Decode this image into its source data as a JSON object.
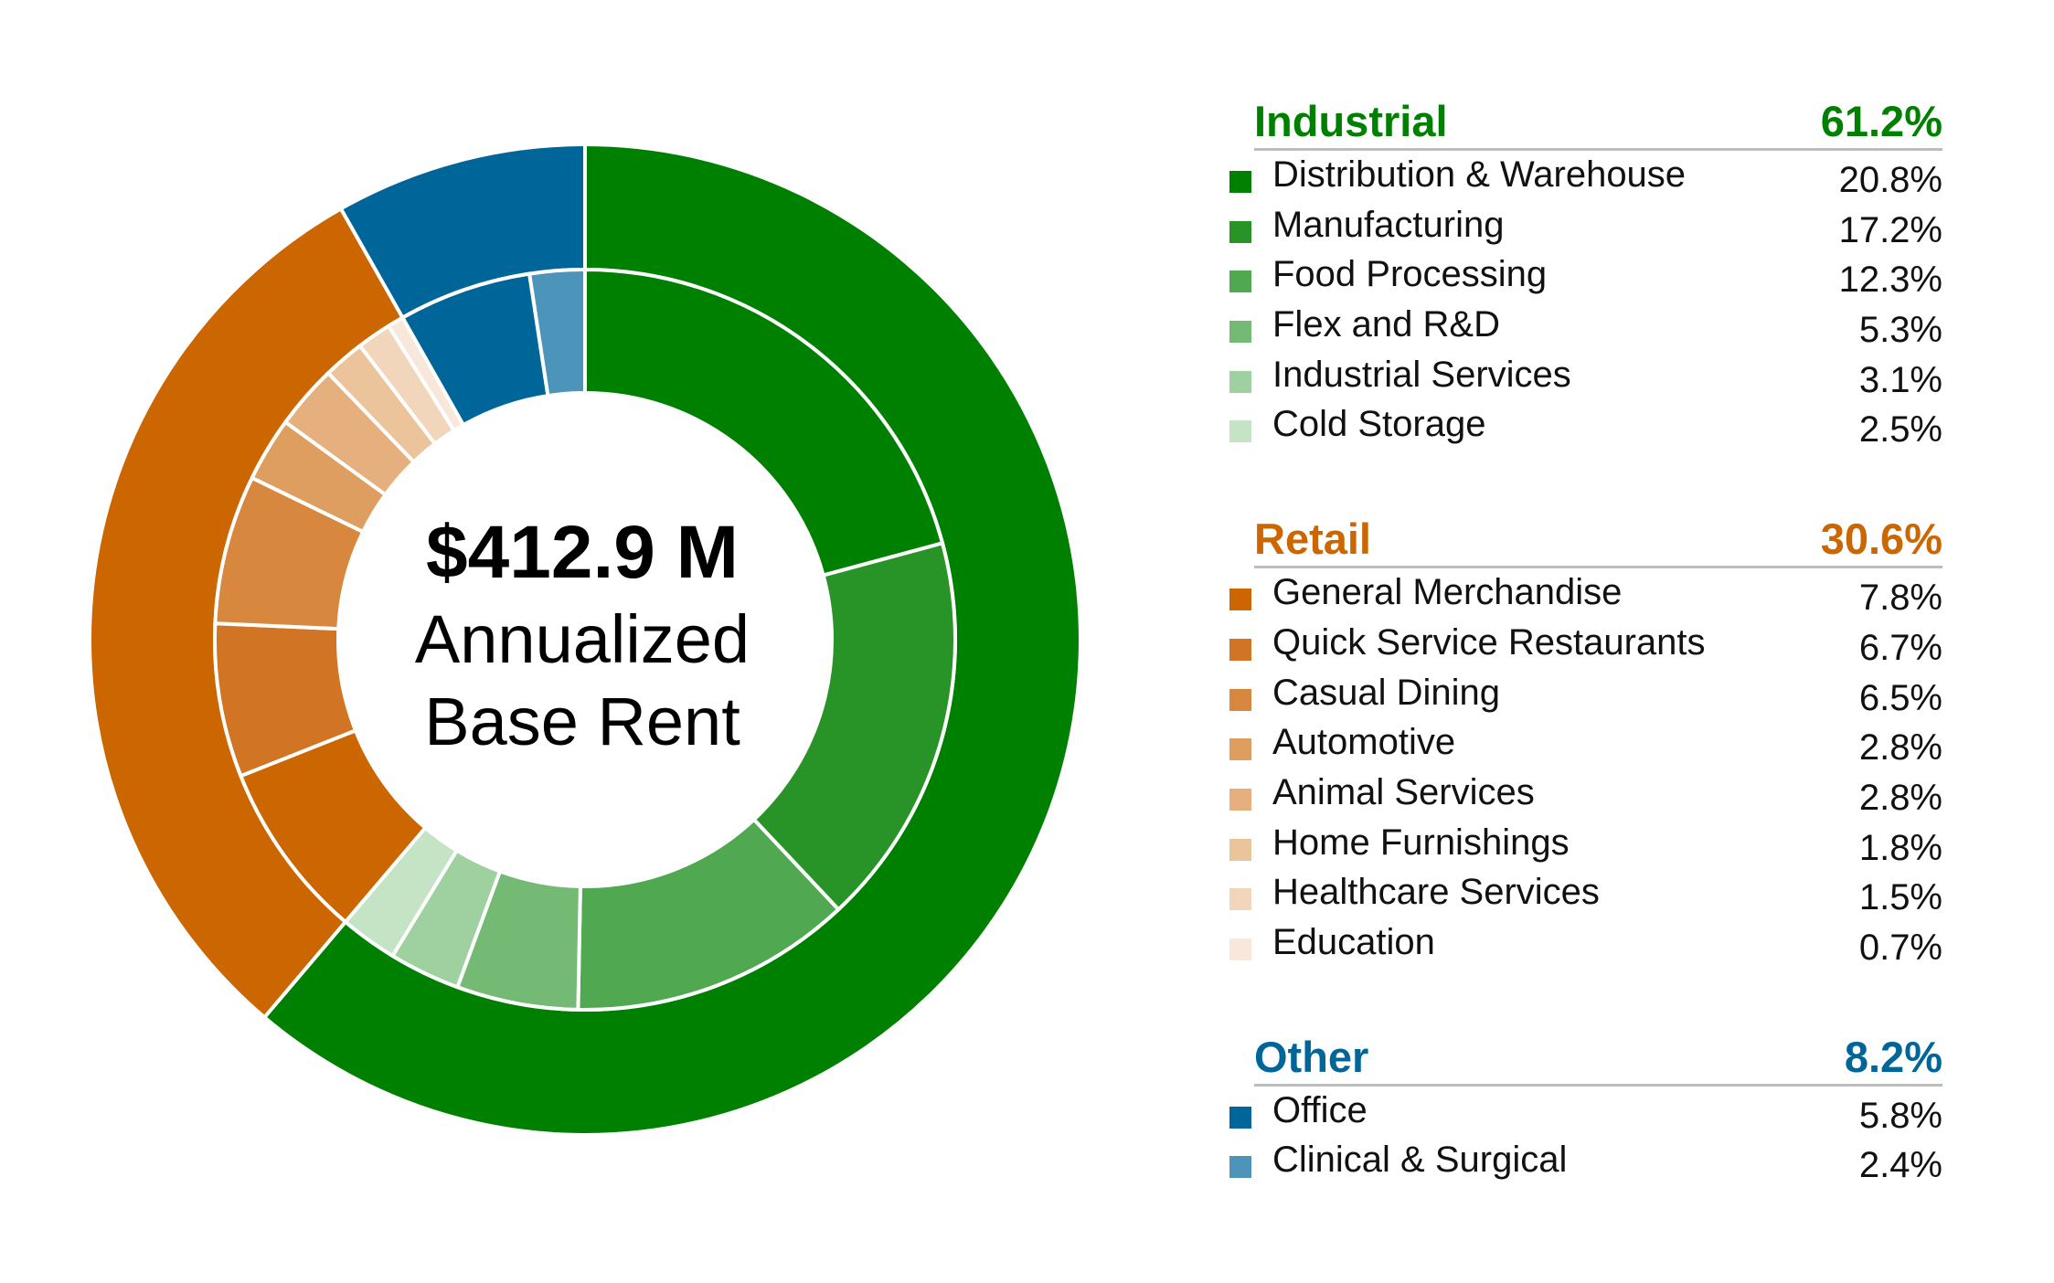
{
  "center": {
    "amount": "$412.9 M",
    "line1": "Annualized",
    "line2": "Base Rent"
  },
  "groups": [
    {
      "name": "Industrial",
      "value": 61.2,
      "label": "61.2%",
      "color": "#008000",
      "items": [
        {
          "name": "Distribution & Warehouse",
          "value": 20.8,
          "label": "20.8%",
          "color": "#008000"
        },
        {
          "name": "Manufacturing",
          "value": 17.2,
          "label": "17.2%",
          "color": "#289428"
        },
        {
          "name": "Food Processing",
          "value": 12.3,
          "label": "12.3%",
          "color": "#50a850"
        },
        {
          "name": "Flex and R&D",
          "value": 5.3,
          "label": "5.3%",
          "color": "#74b974"
        },
        {
          "name": "Industrial Services",
          "value": 3.1,
          "label": "3.1%",
          "color": "#9fd09f"
        },
        {
          "name": "Cold Storage",
          "value": 2.5,
          "label": "2.5%",
          "color": "#c5e3c5"
        }
      ]
    },
    {
      "name": "Retail",
      "value": 30.6,
      "label": "30.6%",
      "color": "#cc6600",
      "items": [
        {
          "name": "General Merchandise",
          "value": 7.8,
          "label": "7.8%",
          "color": "#cc6600"
        },
        {
          "name": "Quick Service Restaurants",
          "value": 6.7,
          "label": "6.7%",
          "color": "#d17424"
        },
        {
          "name": "Casual Dining",
          "value": 6.5,
          "label": "6.5%",
          "color": "#d7883e"
        },
        {
          "name": "Automotive",
          "value": 2.8,
          "label": "2.8%",
          "color": "#de9e60"
        },
        {
          "name": "Animal Services",
          "value": 2.8,
          "label": "2.8%",
          "color": "#e5b07e"
        },
        {
          "name": "Home Furnishings",
          "value": 1.8,
          "label": "1.8%",
          "color": "#ecc49c"
        },
        {
          "name": "Healthcare Services",
          "value": 1.5,
          "label": "1.5%",
          "color": "#f2d6bc"
        },
        {
          "name": "Education",
          "value": 0.7,
          "label": "0.7%",
          "color": "#f8e8db"
        }
      ]
    },
    {
      "name": "Other",
      "value": 8.2,
      "label": "8.2%",
      "color": "#006699",
      "items": [
        {
          "name": "Office",
          "value": 5.8,
          "label": "5.8%",
          "color": "#006699"
        },
        {
          "name": "Clinical & Surgical",
          "value": 2.4,
          "label": "2.4%",
          "color": "#4d94bb"
        }
      ]
    }
  ],
  "chart_data": {
    "type": "pie",
    "outer_ring": {
      "categories": [
        "Industrial",
        "Retail",
        "Other"
      ],
      "values": [
        61.2,
        30.6,
        8.2
      ]
    },
    "inner_ring": {
      "categories": [
        "Distribution & Warehouse",
        "Manufacturing",
        "Food Processing",
        "Flex and R&D",
        "Industrial Services",
        "Cold Storage",
        "General Merchandise",
        "Quick Service Restaurants",
        "Casual Dining",
        "Automotive",
        "Animal Services",
        "Home Furnishings",
        "Healthcare Services",
        "Education",
        "Office",
        "Clinical & Surgical"
      ],
      "values": [
        20.8,
        17.2,
        12.3,
        5.3,
        3.1,
        2.5,
        7.8,
        6.7,
        6.5,
        2.8,
        2.8,
        1.8,
        1.5,
        0.7,
        5.8,
        2.4
      ]
    },
    "title": "",
    "legend": "right"
  }
}
